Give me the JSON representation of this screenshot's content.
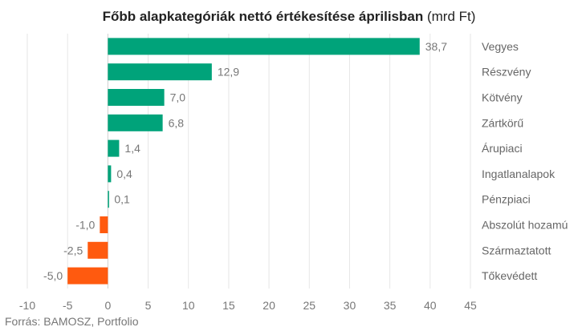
{
  "chart_data": {
    "type": "bar",
    "orientation": "horizontal",
    "title": "Főbb alapkategóriák nettó értékesítése áprilisban",
    "title_unit": "(mrd Ft)",
    "categories": [
      "Vegyes",
      "Részvény",
      "Kötvény",
      "Zártkörű",
      "Árupiaci",
      "Ingatlanalapok",
      "Pénzpiaci",
      "Abszolút hozamú",
      "Származtatott",
      "Tőkevédett"
    ],
    "values": [
      38.7,
      12.9,
      7.0,
      6.8,
      1.4,
      0.4,
      0.1,
      -1.0,
      -2.5,
      -5.0
    ],
    "value_labels": [
      "38,7",
      "12,9",
      "7,0",
      "6,8",
      "1,4",
      "0,4",
      "0,1",
      "-1,0",
      "-2,5",
      "-5,0"
    ],
    "xlim": [
      -10,
      45
    ],
    "xticks": [
      -10,
      -5,
      0,
      5,
      10,
      15,
      20,
      25,
      30,
      35,
      40,
      45
    ],
    "xtick_labels": [
      "-10",
      "-5",
      "0",
      "5",
      "10",
      "15",
      "20",
      "25",
      "30",
      "35",
      "40",
      "45"
    ],
    "grid": "vertical",
    "colors": {
      "positive": "#00a37a",
      "negative": "#ff5a0f"
    }
  },
  "source": "Forrás: BAMOSZ, Portfolio"
}
